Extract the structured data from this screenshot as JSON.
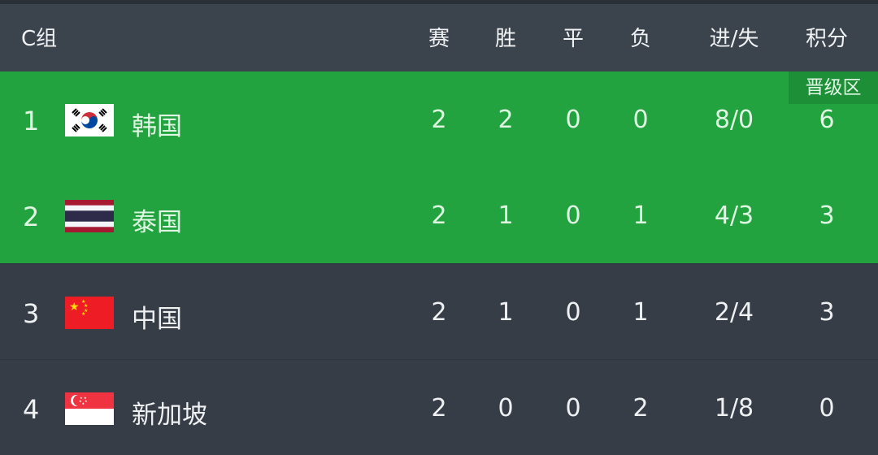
{
  "header": {
    "group": "C组",
    "cols": [
      "赛",
      "胜",
      "平",
      "负",
      "进/失",
      "积分"
    ]
  },
  "badge": "晋级区",
  "colors": {
    "qualify": "#22a33f",
    "row": "#363d46",
    "header": "#3b434d"
  },
  "rows": [
    {
      "rank": "1",
      "flag": "south-korea-flag",
      "team": "韩国",
      "p": "2",
      "w": "2",
      "d": "0",
      "l": "0",
      "gd": "8/0",
      "pts": "6",
      "zone": "qualify"
    },
    {
      "rank": "2",
      "flag": "thailand-flag",
      "team": "泰国",
      "p": "2",
      "w": "1",
      "d": "0",
      "l": "1",
      "gd": "4/3",
      "pts": "3",
      "zone": "qualify"
    },
    {
      "rank": "3",
      "flag": "china-flag",
      "team": "中国",
      "p": "2",
      "w": "1",
      "d": "0",
      "l": "1",
      "gd": "2/4",
      "pts": "3",
      "zone": ""
    },
    {
      "rank": "4",
      "flag": "singapore-flag",
      "team": "新加坡",
      "p": "2",
      "w": "0",
      "d": "0",
      "l": "2",
      "gd": "1/8",
      "pts": "0",
      "zone": ""
    }
  ]
}
